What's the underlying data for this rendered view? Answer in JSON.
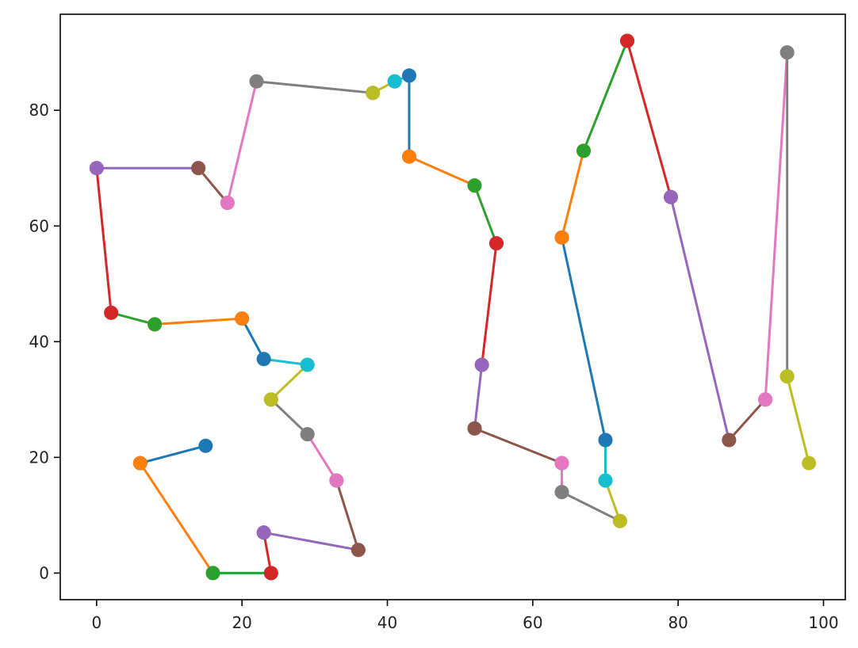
{
  "chart_data": {
    "type": "line",
    "title": "",
    "xlabel": "",
    "ylabel": "",
    "xlim": [
      -5,
      103
    ],
    "ylim": [
      -4.6,
      96.6
    ],
    "xticks": [
      0,
      20,
      40,
      60,
      80,
      100
    ],
    "xtick_labels": [
      "0",
      "20",
      "40",
      "60",
      "80",
      "100"
    ],
    "yticks": [
      0,
      20,
      40,
      60,
      80
    ],
    "ytick_labels": [
      "0",
      "20",
      "40",
      "60",
      "80"
    ],
    "grid": false,
    "legend": "none",
    "color_cycle": [
      "#1f77b4",
      "#ff7f0e",
      "#2ca02c",
      "#d62728",
      "#9467bd",
      "#8c564b",
      "#e377c2",
      "#7f7f7f",
      "#bcbd22",
      "#17becf"
    ],
    "path_points": [
      [
        15,
        22
      ],
      [
        6,
        19
      ],
      [
        16,
        0
      ],
      [
        24,
        0
      ],
      [
        23,
        7
      ],
      [
        36,
        4
      ],
      [
        33,
        16
      ],
      [
        29,
        24
      ],
      [
        24,
        30
      ],
      [
        29,
        36
      ],
      [
        23,
        37
      ],
      [
        20,
        44
      ],
      [
        8,
        43
      ],
      [
        2,
        45
      ],
      [
        0,
        70
      ],
      [
        14,
        70
      ],
      [
        18,
        64
      ],
      [
        22,
        85
      ],
      [
        38,
        83
      ],
      [
        41,
        85
      ],
      [
        43,
        86
      ],
      [
        43,
        72
      ],
      [
        52,
        67
      ],
      [
        55,
        57
      ],
      [
        53,
        36
      ],
      [
        52,
        25
      ],
      [
        64,
        19
      ],
      [
        64,
        14
      ],
      [
        72,
        9
      ],
      [
        70,
        16
      ],
      [
        70,
        23
      ],
      [
        64,
        58
      ],
      [
        67,
        73
      ],
      [
        73,
        92
      ],
      [
        79,
        65
      ],
      [
        87,
        23
      ],
      [
        92,
        30
      ],
      [
        95,
        90
      ],
      [
        95,
        34
      ],
      [
        98,
        19
      ]
    ]
  }
}
